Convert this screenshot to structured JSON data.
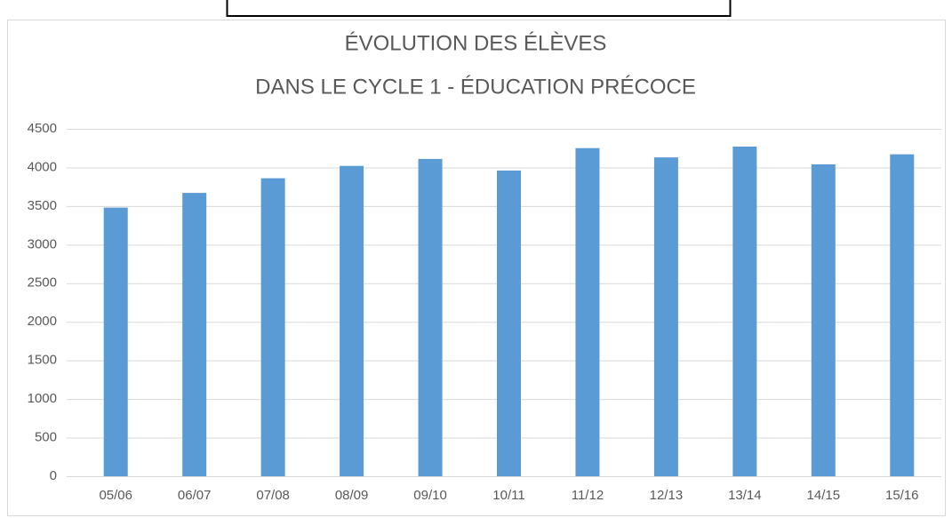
{
  "chart_data": {
    "type": "bar",
    "title": [
      "ÉVOLUTION DES ÉLÈVES",
      "DANS LE CYCLE 1 - ÉDUCATION PRÉCOCE"
    ],
    "categories": [
      "05/06",
      "06/07",
      "07/08",
      "08/09",
      "09/10",
      "10/11",
      "11/12",
      "12/13",
      "13/14",
      "14/15",
      "15/16"
    ],
    "values": [
      3480,
      3670,
      3860,
      4020,
      4110,
      3960,
      4250,
      4130,
      4270,
      4040,
      4170
    ],
    "color": "#5b9bd5",
    "ylim": [
      0,
      4500
    ],
    "yticks": [
      0,
      500,
      1000,
      1500,
      2000,
      2500,
      3000,
      3500,
      4000,
      4500
    ],
    "grid": true
  }
}
